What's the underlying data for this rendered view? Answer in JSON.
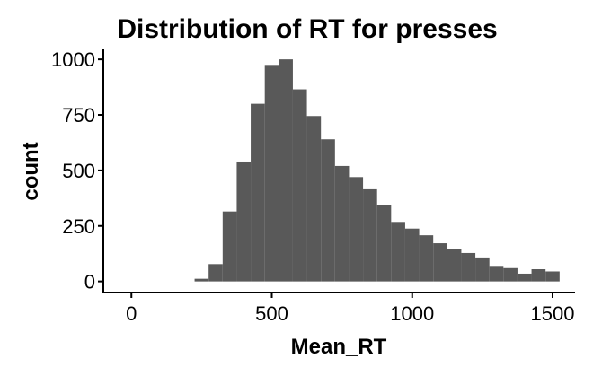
{
  "chart_data": {
    "type": "histogram",
    "title": "Distribution of RT for presses",
    "xlabel": "Mean_RT",
    "ylabel": "count",
    "bin_width": 50,
    "bins": [
      {
        "start": 225,
        "end": 275,
        "count": 12
      },
      {
        "start": 275,
        "end": 325,
        "count": 78
      },
      {
        "start": 325,
        "end": 375,
        "count": 315
      },
      {
        "start": 375,
        "end": 425,
        "count": 540
      },
      {
        "start": 425,
        "end": 475,
        "count": 800
      },
      {
        "start": 475,
        "end": 525,
        "count": 975
      },
      {
        "start": 525,
        "end": 575,
        "count": 1000
      },
      {
        "start": 575,
        "end": 625,
        "count": 865
      },
      {
        "start": 625,
        "end": 675,
        "count": 745
      },
      {
        "start": 675,
        "end": 725,
        "count": 640
      },
      {
        "start": 725,
        "end": 775,
        "count": 520
      },
      {
        "start": 775,
        "end": 825,
        "count": 470
      },
      {
        "start": 825,
        "end": 875,
        "count": 415
      },
      {
        "start": 875,
        "end": 925,
        "count": 342
      },
      {
        "start": 925,
        "end": 975,
        "count": 268
      },
      {
        "start": 975,
        "end": 1025,
        "count": 238
      },
      {
        "start": 1025,
        "end": 1075,
        "count": 208
      },
      {
        "start": 1075,
        "end": 1125,
        "count": 172
      },
      {
        "start": 1125,
        "end": 1175,
        "count": 148
      },
      {
        "start": 1175,
        "end": 1225,
        "count": 128
      },
      {
        "start": 1225,
        "end": 1275,
        "count": 108
      },
      {
        "start": 1275,
        "end": 1325,
        "count": 70
      },
      {
        "start": 1325,
        "end": 1375,
        "count": 60
      },
      {
        "start": 1375,
        "end": 1425,
        "count": 35
      },
      {
        "start": 1425,
        "end": 1475,
        "count": 55
      },
      {
        "start": 1475,
        "end": 1525,
        "count": 45
      }
    ],
    "x_ticks": [
      "0",
      "500",
      "1000",
      "1500"
    ],
    "y_ticks": [
      "0",
      "250",
      "500",
      "750",
      "1000"
    ],
    "xlim": [
      -100,
      1580
    ],
    "ylim": [
      -50,
      1045
    ],
    "bar_color": "#595959",
    "axis_color": "#000000",
    "grid": false
  }
}
